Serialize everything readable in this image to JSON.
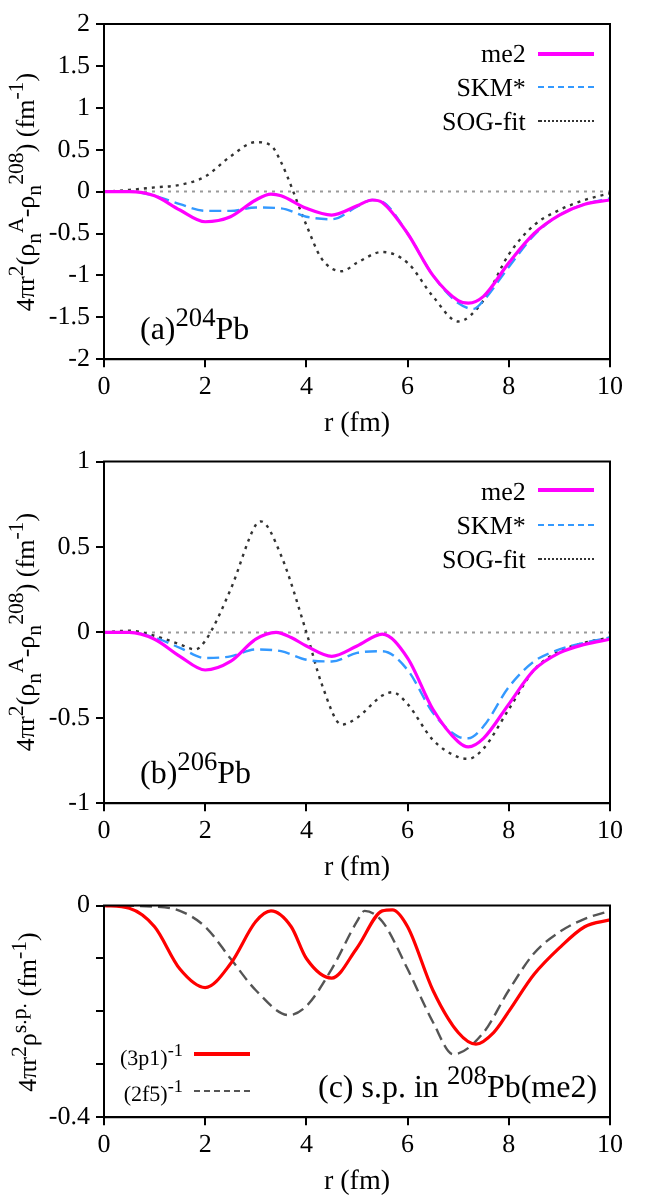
{
  "chart_data": [
    {
      "type": "line",
      "xlabel": "r (fm)",
      "ylabel": "4πr$^{2}$(ρ$_{n}$$^{A}$-ρ$_{n}$$^{208}$) (fm$^{-1}$)",
      "annotations": [
        "(a)$^{204}$Pb"
      ],
      "xlim": [
        0,
        10
      ],
      "xticks": [
        0,
        2,
        4,
        6,
        8,
        10
      ],
      "ylim": [
        -2,
        2
      ],
      "yticks": [
        -2,
        -1.5,
        -1,
        -0.5,
        0,
        0.5,
        1,
        1.5,
        2
      ],
      "legend": "top right",
      "marker": "none",
      "ref_lines": [
        {
          "axis": "y",
          "value": 0,
          "color": "#999999",
          "line_style": "dotted"
        }
      ],
      "series": [
        {
          "name": "me2",
          "color": "#ff00ff",
          "line_style": "solid",
          "x": [
            0,
            0.5,
            1,
            1.5,
            2,
            2.5,
            3,
            3.3,
            3.5,
            4,
            4.5,
            5,
            5.3,
            5.5,
            6,
            6.5,
            7,
            7.2,
            7.5,
            8,
            8.5,
            9,
            9.5,
            10
          ],
          "values": [
            0,
            0,
            -0.05,
            -0.22,
            -0.36,
            -0.3,
            -0.1,
            -0.03,
            -0.05,
            -0.2,
            -0.28,
            -0.17,
            -0.1,
            -0.13,
            -0.5,
            -1.0,
            -1.3,
            -1.33,
            -1.25,
            -0.85,
            -0.5,
            -0.28,
            -0.15,
            -0.1
          ]
        },
        {
          "name": "SKM*",
          "color": "#3399ff",
          "line_style": "dashed",
          "x": [
            0,
            0.5,
            1,
            1.5,
            2,
            2.5,
            3,
            3.5,
            4,
            4.5,
            5,
            5.3,
            5.5,
            6,
            6.5,
            7,
            7.3,
            7.5,
            8,
            8.5,
            9,
            9.5,
            10
          ],
          "values": [
            0,
            0,
            -0.05,
            -0.15,
            -0.23,
            -0.23,
            -0.19,
            -0.2,
            -0.3,
            -0.33,
            -0.18,
            -0.1,
            -0.12,
            -0.5,
            -1.0,
            -1.33,
            -1.4,
            -1.3,
            -0.9,
            -0.52,
            -0.28,
            -0.15,
            -0.08
          ]
        },
        {
          "name": "SOG-fit",
          "color": "#333333",
          "line_style": "dotted",
          "x": [
            0,
            0.5,
            1,
            1.5,
            2,
            2.5,
            3,
            3.3,
            3.5,
            4,
            4.3,
            4.7,
            5,
            5.5,
            6,
            6.5,
            7,
            7.5,
            8,
            8.5,
            9,
            9.5,
            10
          ],
          "values": [
            0,
            0.02,
            0.05,
            0.08,
            0.18,
            0.42,
            0.59,
            0.55,
            0.35,
            -0.4,
            -0.8,
            -0.95,
            -0.85,
            -0.72,
            -0.85,
            -1.25,
            -1.55,
            -1.3,
            -0.75,
            -0.4,
            -0.22,
            -0.1,
            -0.02
          ]
        }
      ]
    },
    {
      "type": "line",
      "xlabel": "r (fm)",
      "ylabel": "4πr$^{2}$(ρ$_{n}$$^{A}$-ρ$_{n}$$^{208}$) (fm$^{-1}$)",
      "annotations": [
        "(b)$^{206}$Pb"
      ],
      "xlim": [
        0,
        10
      ],
      "xticks": [
        0,
        2,
        4,
        6,
        8,
        10
      ],
      "ylim": [
        -1,
        1
      ],
      "yticks": [
        -1,
        -0.5,
        0,
        0.5,
        1
      ],
      "legend": "top right",
      "marker": "none",
      "ref_lines": [
        {
          "axis": "y",
          "value": 0,
          "color": "#999999",
          "line_style": "dotted"
        }
      ],
      "series": [
        {
          "name": "me2",
          "color": "#ff00ff",
          "line_style": "solid",
          "x": [
            0,
            0.5,
            1,
            1.5,
            2,
            2.5,
            3,
            3.4,
            3.7,
            4,
            4.5,
            5,
            5.5,
            6,
            6.5,
            7,
            7.2,
            7.5,
            8,
            8.5,
            9,
            9.5,
            10
          ],
          "values": [
            0,
            0,
            -0.04,
            -0.14,
            -0.22,
            -0.17,
            -0.04,
            0,
            -0.03,
            -0.08,
            -0.14,
            -0.08,
            -0.01,
            -0.15,
            -0.45,
            -0.64,
            -0.67,
            -0.62,
            -0.42,
            -0.22,
            -0.12,
            -0.07,
            -0.04
          ]
        },
        {
          "name": "SKM*",
          "color": "#3399ff",
          "line_style": "dashed",
          "x": [
            0,
            0.5,
            1,
            1.5,
            2,
            2.5,
            3,
            3.5,
            4,
            4.5,
            5,
            5.5,
            6,
            6.5,
            7,
            7.2,
            7.5,
            8,
            8.5,
            9,
            9.5,
            10
          ],
          "values": [
            0,
            0,
            -0.03,
            -0.09,
            -0.15,
            -0.14,
            -0.1,
            -0.11,
            -0.16,
            -0.17,
            -0.12,
            -0.11,
            -0.22,
            -0.47,
            -0.61,
            -0.62,
            -0.55,
            -0.32,
            -0.17,
            -0.1,
            -0.06,
            -0.03
          ]
        },
        {
          "name": "SOG-fit",
          "color": "#333333",
          "line_style": "dotted",
          "x": [
            0,
            0.5,
            1,
            1.5,
            1.8,
            2,
            2.5,
            3,
            3.1,
            3.5,
            4,
            4.3,
            4.7,
            5,
            5.5,
            5.7,
            6,
            6.5,
            7,
            7.2,
            7.5,
            8,
            8.5,
            9,
            9.5,
            10
          ],
          "values": [
            0,
            0.01,
            -0.02,
            -0.07,
            -0.1,
            -0.05,
            0.25,
            0.63,
            0.65,
            0.45,
            0,
            -0.3,
            -0.54,
            -0.5,
            -0.37,
            -0.35,
            -0.42,
            -0.63,
            -0.73,
            -0.74,
            -0.68,
            -0.45,
            -0.22,
            -0.11,
            -0.06,
            -0.03
          ]
        }
      ]
    },
    {
      "type": "line",
      "xlabel": "r (fm)",
      "ylabel": "4πr$^{2}$ρ$^{s.p.}$ (fm$^{-1}$)",
      "annotations": [
        "(c) s.p. in $^{208}$Pb(me2)"
      ],
      "xlim": [
        0,
        10
      ],
      "xticks": [
        0,
        2,
        4,
        6,
        8,
        10
      ],
      "ylim": [
        -0.4,
        0
      ],
      "yticks": [
        -0.4,
        {
          "value": -0.3,
          "label": null
        },
        {
          "value": -0.2,
          "label": null
        },
        {
          "value": -0.1,
          "label": null
        },
        0
      ],
      "legend": "bottom left",
      "marker": "none",
      "series": [
        {
          "name": "(3p1)$^{-1}$",
          "color": "#ff0000",
          "line_style": "solid",
          "x": [
            0,
            0.5,
            1,
            1.5,
            2,
            2.5,
            3,
            3.3,
            3.7,
            4,
            4.5,
            5,
            5.5,
            5.7,
            6,
            6.5,
            7,
            7.35,
            7.7,
            8,
            8.5,
            9,
            9.5,
            10
          ],
          "values": [
            0,
            -0.005,
            -0.04,
            -0.12,
            -0.155,
            -0.11,
            -0.03,
            -0.01,
            -0.04,
            -0.1,
            -0.137,
            -0.08,
            -0.01,
            -0.008,
            -0.04,
            -0.16,
            -0.24,
            -0.262,
            -0.24,
            -0.2,
            -0.13,
            -0.08,
            -0.04,
            -0.027
          ]
        },
        {
          "name": "(2f5)$^{-1}$",
          "color": "#555555",
          "line_style": "dashed",
          "x": [
            0,
            1,
            1.5,
            2,
            2.5,
            3,
            3.65,
            4,
            4.5,
            5,
            5.15,
            5.5,
            6,
            6.5,
            6.9,
            7.5,
            8,
            8.5,
            9,
            9.5,
            10
          ],
          "values": [
            0,
            -0.002,
            -0.01,
            -0.04,
            -0.1,
            -0.16,
            -0.207,
            -0.19,
            -0.12,
            -0.03,
            -0.01,
            -0.03,
            -0.12,
            -0.22,
            -0.281,
            -0.24,
            -0.16,
            -0.09,
            -0.05,
            -0.025,
            -0.01
          ]
        }
      ]
    }
  ]
}
